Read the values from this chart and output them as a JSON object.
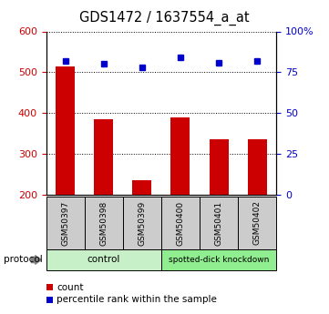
{
  "title": "GDS1472 / 1637554_a_at",
  "samples": [
    "GSM50397",
    "GSM50398",
    "GSM50399",
    "GSM50400",
    "GSM50401",
    "GSM50402"
  ],
  "counts": [
    515,
    385,
    235,
    390,
    335,
    335
  ],
  "percentiles": [
    82,
    80,
    78,
    84,
    81,
    82
  ],
  "groups": [
    {
      "label": "control",
      "color": "#c8f0c8",
      "n": 3
    },
    {
      "label": "spotted-dick knockdown",
      "color": "#90ee90",
      "n": 3
    }
  ],
  "ylim_left": [
    200,
    600
  ],
  "ylim_right": [
    0,
    100
  ],
  "yticks_left": [
    200,
    300,
    400,
    500,
    600
  ],
  "yticks_right": [
    0,
    25,
    50,
    75,
    100
  ],
  "ytick_labels_right": [
    "0",
    "25",
    "50",
    "75",
    "100%"
  ],
  "bar_color": "#cc0000",
  "dot_color": "#0000cc",
  "bar_width": 0.5,
  "plot_bg": "#ffffff",
  "label_color_left": "#cc0000",
  "label_color_right": "#0000cc",
  "sample_box_color": "#cccccc",
  "protocol_label": "protocol",
  "legend_count_label": "count",
  "legend_percentile_label": "percentile rank within the sample"
}
